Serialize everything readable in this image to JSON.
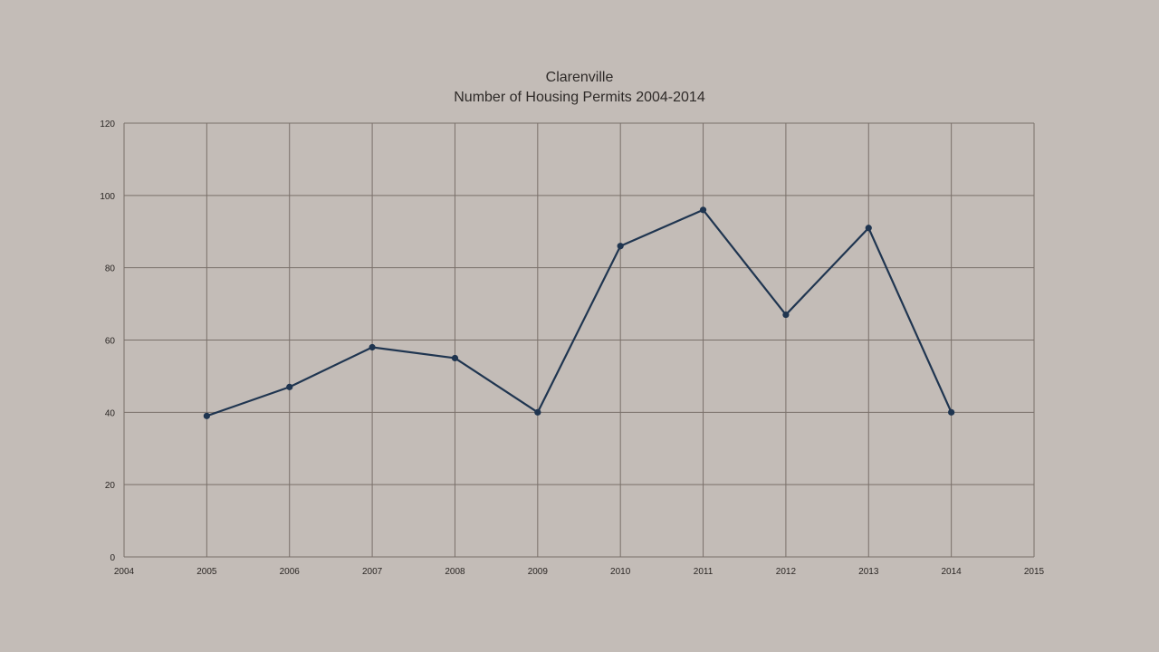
{
  "chart_data": {
    "type": "line",
    "title": "Clarenville",
    "subtitle": "Number of Housing Permits 2004-2014",
    "xlabel": "",
    "ylabel": "",
    "xlim": [
      2004,
      2015
    ],
    "ylim": [
      0,
      120
    ],
    "x_ticks": [
      "2004",
      "2005",
      "2006",
      "2007",
      "2008",
      "2009",
      "2010",
      "2011",
      "2012",
      "2013",
      "2014",
      "2015"
    ],
    "y_ticks": [
      "0",
      "20",
      "40",
      "60",
      "80",
      "100",
      "120"
    ],
    "grid": true,
    "legend": null,
    "series": [
      {
        "name": "Housing Permits",
        "color": "#1f3550",
        "x": [
          2005,
          2006,
          2007,
          2008,
          2009,
          2010,
          2011,
          2012,
          2013,
          2014
        ],
        "values": [
          39,
          47,
          58,
          55,
          40,
          86,
          96,
          67,
          91,
          40
        ]
      }
    ]
  },
  "colors": {
    "background": "#c3bcb7",
    "grid": "#7a706a",
    "line": "#1f3550"
  }
}
